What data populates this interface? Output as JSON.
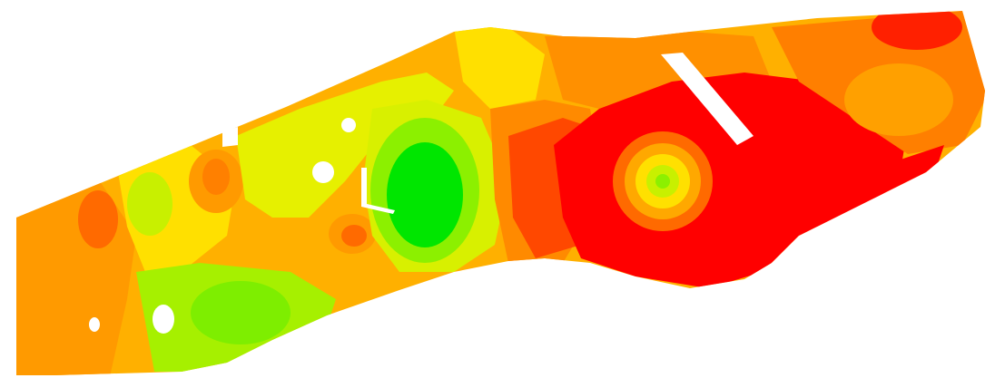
{
  "map": {
    "kind": "interpolated field yield / soil property map",
    "palette": {
      "red": "#ff0000",
      "red_orange": "#ff4800",
      "orange": "#ff7f00",
      "orange_yellow": "#ffb000",
      "yellow": "#ffe000",
      "yellow_green": "#c8f000",
      "lime": "#8cf000",
      "light_green": "#55ee00",
      "green": "#00e600",
      "background": "#ffffff"
    },
    "legend_visible": false,
    "labels_visible": false
  }
}
